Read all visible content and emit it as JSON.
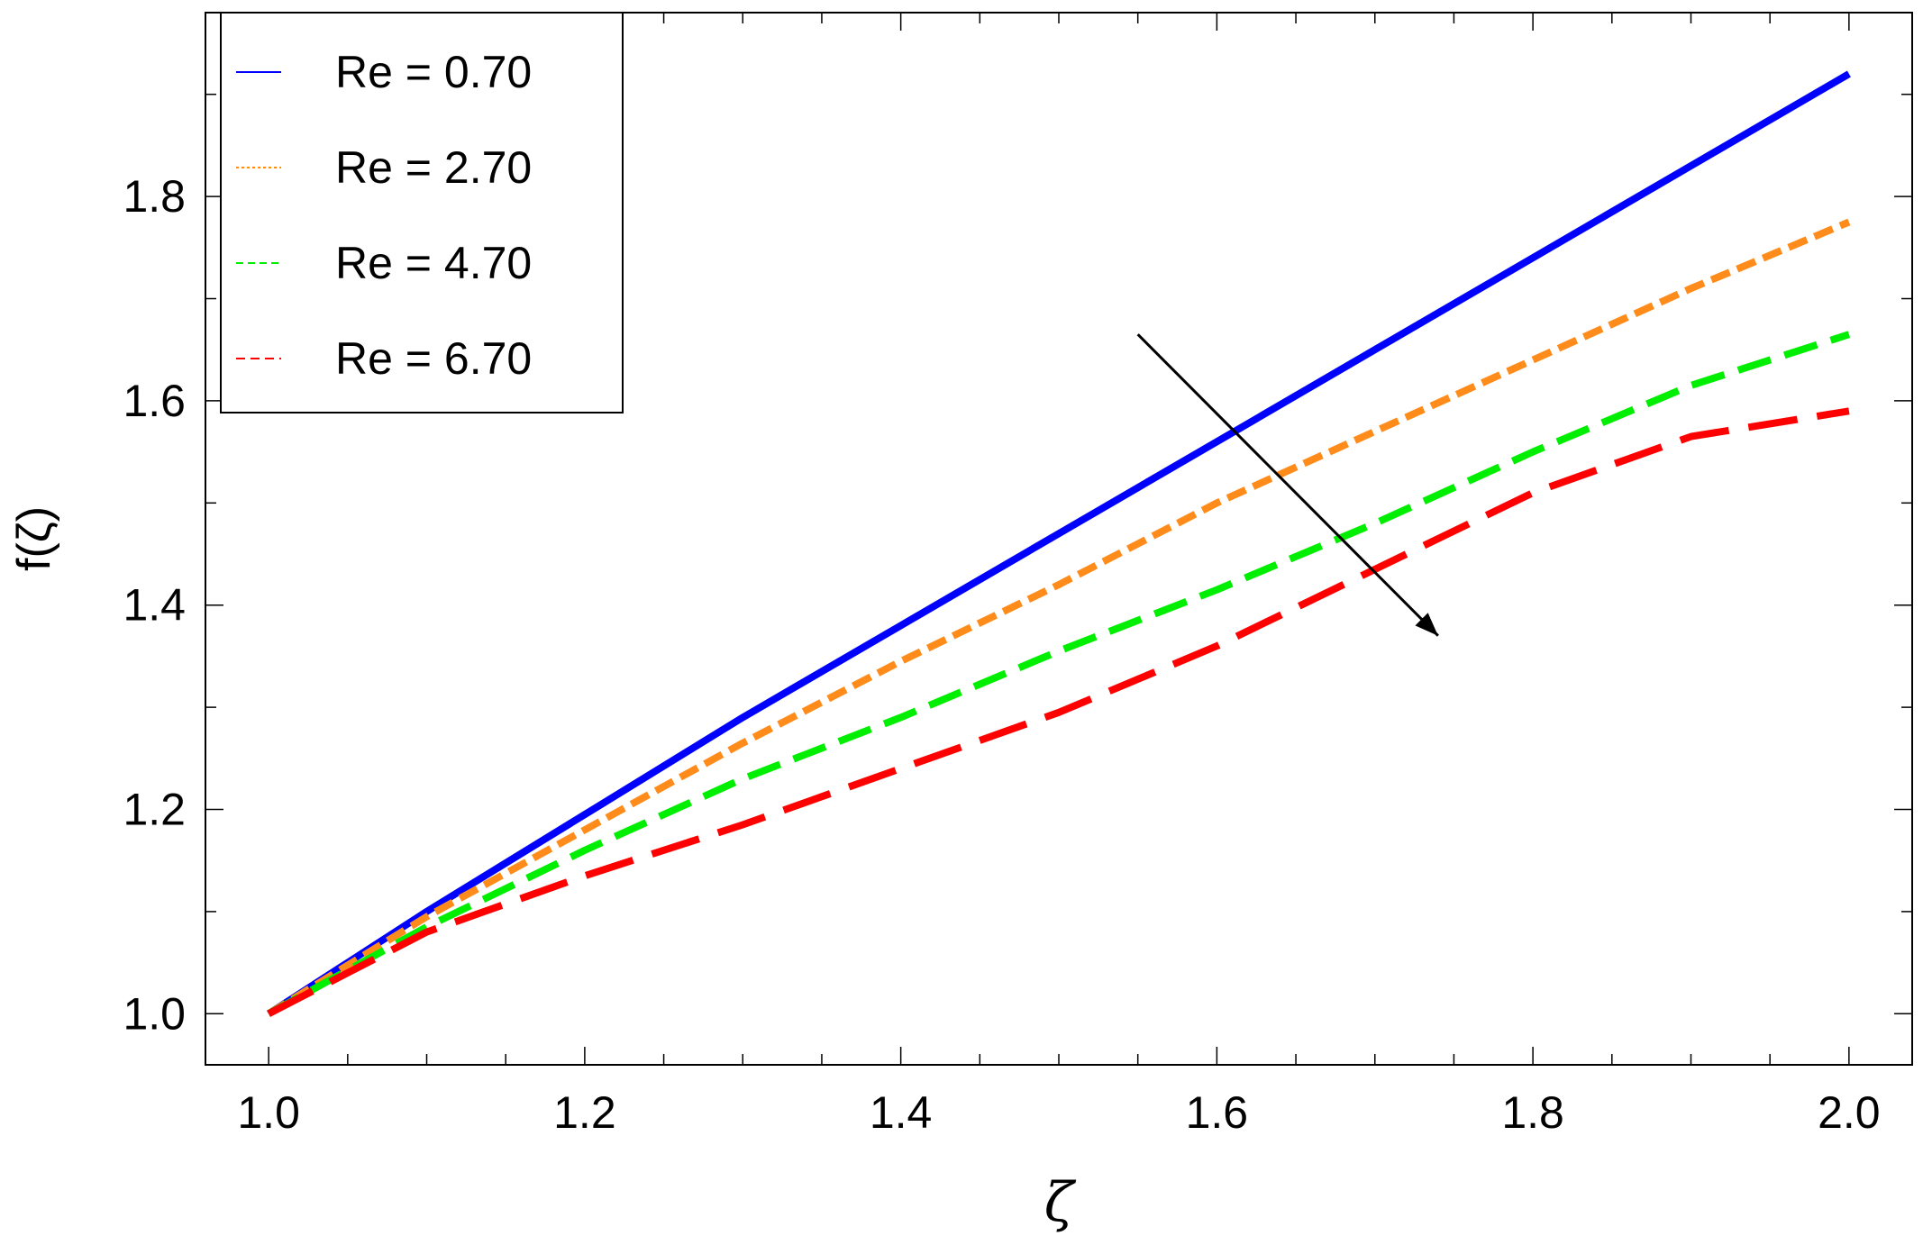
{
  "chart_data": {
    "type": "line",
    "title": "",
    "xlabel": "ζ",
    "ylabel": "f(ζ)",
    "xlim": [
      0.96,
      2.04
    ],
    "ylim": [
      0.95,
      1.98
    ],
    "xticks": [
      1.0,
      1.2,
      1.4,
      1.6,
      1.8,
      2.0
    ],
    "xtick_labels": [
      "1.0",
      "1.2",
      "1.4",
      "1.6",
      "1.8",
      "2.0"
    ],
    "yticks": [
      1.0,
      1.2,
      1.4,
      1.6,
      1.8
    ],
    "ytick_labels": [
      "1.0",
      "1.2",
      "1.4",
      "1.6",
      "1.8"
    ],
    "x_minor_step": 0.05,
    "y_minor_step": 0.1,
    "grid": false,
    "legend_position": "top-left",
    "x": [
      1.0,
      1.1,
      1.2,
      1.3,
      1.4,
      1.5,
      1.6,
      1.7,
      1.8,
      1.9,
      2.0
    ],
    "series": [
      {
        "name": "Re = 0.70",
        "color": "#0000ff",
        "style": "solid",
        "values": [
          1.0,
          1.1,
          1.195,
          1.29,
          1.38,
          1.47,
          1.56,
          1.65,
          1.74,
          1.83,
          1.92
        ]
      },
      {
        "name": "Re = 2.70",
        "color": "#ff8c1a",
        "style": "dotted",
        "values": [
          1.0,
          1.095,
          1.18,
          1.265,
          1.345,
          1.42,
          1.5,
          1.57,
          1.64,
          1.71,
          1.775
        ]
      },
      {
        "name": "Re = 4.70",
        "color": "#00ee00",
        "style": "dashed",
        "values": [
          1.0,
          1.085,
          1.16,
          1.23,
          1.29,
          1.355,
          1.415,
          1.48,
          1.55,
          1.615,
          1.665
        ]
      },
      {
        "name": "Re = 6.70",
        "color": "#ff0000",
        "style": "longdash",
        "values": [
          1.0,
          1.08,
          1.135,
          1.185,
          1.24,
          1.295,
          1.36,
          1.435,
          1.51,
          1.565,
          1.59
        ]
      }
    ],
    "annotations": [
      {
        "type": "arrow",
        "from": [
          1.55,
          1.665
        ],
        "to": [
          1.74,
          1.37
        ],
        "color": "#000000"
      }
    ]
  }
}
